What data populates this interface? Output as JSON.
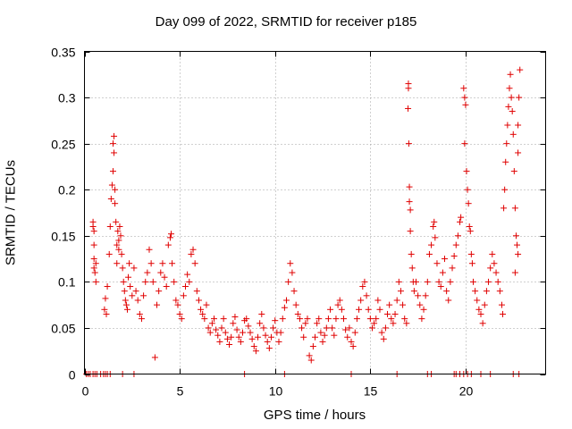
{
  "chart_data": {
    "type": "scatter",
    "title": "Day 099 of 2022, SRMTID for receiver p185",
    "xlabel": "GPS time / hours",
    "ylabel": "SRMTID / TECUs",
    "xlim": [
      0,
      24.2
    ],
    "ylim": [
      0,
      0.35
    ],
    "xticks": [
      0,
      5,
      10,
      15,
      20
    ],
    "xtick_labels": [
      "0",
      "5",
      "10",
      "15",
      "20"
    ],
    "yticks": [
      0,
      0.05,
      0.1,
      0.15,
      0.2,
      0.25,
      0.3,
      0.35
    ],
    "ytick_labels": [
      "0",
      "0.05",
      "0.1",
      "0.15",
      "0.2",
      "0.25",
      "0.3",
      "0.35"
    ],
    "grid": true,
    "marker": "+",
    "color": "#e00000",
    "series": [
      {
        "name": "SRMTID",
        "points": [
          [
            0.1,
            0
          ],
          [
            0.2,
            0
          ],
          [
            0.3,
            0
          ],
          [
            0.45,
            0
          ],
          [
            0.55,
            0
          ],
          [
            0.65,
            0
          ],
          [
            0.85,
            0
          ],
          [
            1.0,
            0
          ],
          [
            1.1,
            0
          ],
          [
            1.2,
            0
          ],
          [
            1.35,
            0
          ],
          [
            2.0,
            0
          ],
          [
            2.6,
            0
          ],
          [
            8.4,
            0
          ],
          [
            10.5,
            0
          ],
          [
            14.0,
            0
          ],
          [
            16.4,
            0
          ],
          [
            18.0,
            0
          ],
          [
            18.2,
            0
          ],
          [
            19.4,
            0
          ],
          [
            19.5,
            0
          ],
          [
            19.7,
            0
          ],
          [
            19.9,
            0
          ],
          [
            20.1,
            0
          ],
          [
            20.3,
            0
          ],
          [
            20.8,
            0
          ],
          [
            21.3,
            0
          ],
          [
            22.5,
            0
          ],
          [
            22.8,
            0
          ],
          [
            0.45,
            0.165
          ],
          [
            0.45,
            0.16
          ],
          [
            0.5,
            0.155
          ],
          [
            0.5,
            0.14
          ],
          [
            0.5,
            0.125
          ],
          [
            0.5,
            0.115
          ],
          [
            0.55,
            0.11
          ],
          [
            0.6,
            0.12
          ],
          [
            0.6,
            0.1
          ],
          [
            1.05,
            0.07
          ],
          [
            1.1,
            0.082
          ],
          [
            1.15,
            0.065
          ],
          [
            1.2,
            0.095
          ],
          [
            1.3,
            0.13
          ],
          [
            1.35,
            0.16
          ],
          [
            1.4,
            0.19
          ],
          [
            1.45,
            0.205
          ],
          [
            1.5,
            0.22
          ],
          [
            1.5,
            0.25
          ],
          [
            1.55,
            0.258
          ],
          [
            1.55,
            0.24
          ],
          [
            1.6,
            0.2
          ],
          [
            1.6,
            0.185
          ],
          [
            1.65,
            0.165
          ],
          [
            1.7,
            0.14
          ],
          [
            1.7,
            0.12
          ],
          [
            1.75,
            0.155
          ],
          [
            1.8,
            0.145
          ],
          [
            1.8,
            0.135
          ],
          [
            1.85,
            0.16
          ],
          [
            1.9,
            0.15
          ],
          [
            1.95,
            0.13
          ],
          [
            2.0,
            0.115
          ],
          [
            2.05,
            0.1
          ],
          [
            2.1,
            0.09
          ],
          [
            2.15,
            0.08
          ],
          [
            2.2,
            0.075
          ],
          [
            2.25,
            0.07
          ],
          [
            2.3,
            0.105
          ],
          [
            2.35,
            0.12
          ],
          [
            2.4,
            0.095
          ],
          [
            2.5,
            0.085
          ],
          [
            2.6,
            0.115
          ],
          [
            2.7,
            0.09
          ],
          [
            2.8,
            0.08
          ],
          [
            2.9,
            0.065
          ],
          [
            3.0,
            0.06
          ],
          [
            3.1,
            0.085
          ],
          [
            3.2,
            0.1
          ],
          [
            3.3,
            0.11
          ],
          [
            3.4,
            0.135
          ],
          [
            3.5,
            0.12
          ],
          [
            3.6,
            0.1
          ],
          [
            3.7,
            0.018
          ],
          [
            3.8,
            0.075
          ],
          [
            3.9,
            0.09
          ],
          [
            4.0,
            0.11
          ],
          [
            4.1,
            0.12
          ],
          [
            4.2,
            0.105
          ],
          [
            4.3,
            0.095
          ],
          [
            4.4,
            0.14
          ],
          [
            4.5,
            0.148
          ],
          [
            4.55,
            0.152
          ],
          [
            4.6,
            0.12
          ],
          [
            4.7,
            0.1
          ],
          [
            4.8,
            0.08
          ],
          [
            4.9,
            0.075
          ],
          [
            5.0,
            0.065
          ],
          [
            5.1,
            0.06
          ],
          [
            5.2,
            0.085
          ],
          [
            5.3,
            0.095
          ],
          [
            5.4,
            0.108
          ],
          [
            5.5,
            0.1
          ],
          [
            5.6,
            0.13
          ],
          [
            5.7,
            0.135
          ],
          [
            5.8,
            0.12
          ],
          [
            5.9,
            0.09
          ],
          [
            6.0,
            0.08
          ],
          [
            6.1,
            0.07
          ],
          [
            6.2,
            0.065
          ],
          [
            6.3,
            0.06
          ],
          [
            6.4,
            0.075
          ],
          [
            6.5,
            0.05
          ],
          [
            6.6,
            0.045
          ],
          [
            6.7,
            0.055
          ],
          [
            6.8,
            0.06
          ],
          [
            6.9,
            0.048
          ],
          [
            7.0,
            0.042
          ],
          [
            7.1,
            0.035
          ],
          [
            7.2,
            0.05
          ],
          [
            7.3,
            0.06
          ],
          [
            7.4,
            0.045
          ],
          [
            7.5,
            0.038
          ],
          [
            7.6,
            0.032
          ],
          [
            7.7,
            0.04
          ],
          [
            7.8,
            0.055
          ],
          [
            7.9,
            0.062
          ],
          [
            8.0,
            0.048
          ],
          [
            8.1,
            0.04
          ],
          [
            8.2,
            0.035
          ],
          [
            8.3,
            0.045
          ],
          [
            8.4,
            0.058
          ],
          [
            8.5,
            0.06
          ],
          [
            8.6,
            0.052
          ],
          [
            8.7,
            0.045
          ],
          [
            8.8,
            0.038
          ],
          [
            8.9,
            0.03
          ],
          [
            9.0,
            0.025
          ],
          [
            9.1,
            0.04
          ],
          [
            9.2,
            0.055
          ],
          [
            9.3,
            0.065
          ],
          [
            9.4,
            0.05
          ],
          [
            9.5,
            0.042
          ],
          [
            9.6,
            0.035
          ],
          [
            9.7,
            0.028
          ],
          [
            9.8,
            0.04
          ],
          [
            9.9,
            0.05
          ],
          [
            10.0,
            0.058
          ],
          [
            10.1,
            0.045
          ],
          [
            10.2,
            0.035
          ],
          [
            10.3,
            0.045
          ],
          [
            10.4,
            0.06
          ],
          [
            10.5,
            0.072
          ],
          [
            10.6,
            0.08
          ],
          [
            10.7,
            0.1
          ],
          [
            10.8,
            0.12
          ],
          [
            10.9,
            0.11
          ],
          [
            11.0,
            0.09
          ],
          [
            11.1,
            0.075
          ],
          [
            11.2,
            0.065
          ],
          [
            11.3,
            0.06
          ],
          [
            11.4,
            0.05
          ],
          [
            11.5,
            0.04
          ],
          [
            11.6,
            0.055
          ],
          [
            11.7,
            0.06
          ],
          [
            11.8,
            0.02
          ],
          [
            11.9,
            0.015
          ],
          [
            12.0,
            0.03
          ],
          [
            12.1,
            0.04
          ],
          [
            12.2,
            0.055
          ],
          [
            12.3,
            0.06
          ],
          [
            12.4,
            0.045
          ],
          [
            12.5,
            0.035
          ],
          [
            12.6,
            0.042
          ],
          [
            12.7,
            0.05
          ],
          [
            12.8,
            0.06
          ],
          [
            12.9,
            0.07
          ],
          [
            13.0,
            0.05
          ],
          [
            13.1,
            0.042
          ],
          [
            13.2,
            0.06
          ],
          [
            13.3,
            0.075
          ],
          [
            13.4,
            0.08
          ],
          [
            13.5,
            0.07
          ],
          [
            13.6,
            0.06
          ],
          [
            13.7,
            0.048
          ],
          [
            13.8,
            0.04
          ],
          [
            13.9,
            0.05
          ],
          [
            14.0,
            0.035
          ],
          [
            14.1,
            0.03
          ],
          [
            14.2,
            0.045
          ],
          [
            14.3,
            0.06
          ],
          [
            14.4,
            0.07
          ],
          [
            14.5,
            0.08
          ],
          [
            14.6,
            0.095
          ],
          [
            14.7,
            0.1
          ],
          [
            14.8,
            0.085
          ],
          [
            14.9,
            0.07
          ],
          [
            15.0,
            0.06
          ],
          [
            15.1,
            0.05
          ],
          [
            15.2,
            0.055
          ],
          [
            15.3,
            0.06
          ],
          [
            15.4,
            0.08
          ],
          [
            15.5,
            0.07
          ],
          [
            15.6,
            0.045
          ],
          [
            15.7,
            0.038
          ],
          [
            15.8,
            0.05
          ],
          [
            15.9,
            0.065
          ],
          [
            16.0,
            0.075
          ],
          [
            16.1,
            0.06
          ],
          [
            16.2,
            0.055
          ],
          [
            16.3,
            0.065
          ],
          [
            16.4,
            0.08
          ],
          [
            16.5,
            0.1
          ],
          [
            16.6,
            0.09
          ],
          [
            16.7,
            0.075
          ],
          [
            16.8,
            0.06
          ],
          [
            16.9,
            0.055
          ],
          [
            17.0,
            0.315
          ],
          [
            17.0,
            0.31
          ],
          [
            16.98,
            0.288
          ],
          [
            17.02,
            0.25
          ],
          [
            17.05,
            0.203
          ],
          [
            17.05,
            0.187
          ],
          [
            17.1,
            0.178
          ],
          [
            17.1,
            0.155
          ],
          [
            17.15,
            0.13
          ],
          [
            17.2,
            0.115
          ],
          [
            17.25,
            0.1
          ],
          [
            17.3,
            0.09
          ],
          [
            17.4,
            0.1
          ],
          [
            17.5,
            0.085
          ],
          [
            17.6,
            0.075
          ],
          [
            17.7,
            0.06
          ],
          [
            17.8,
            0.07
          ],
          [
            17.9,
            0.085
          ],
          [
            18.0,
            0.1
          ],
          [
            18.1,
            0.13
          ],
          [
            18.2,
            0.14
          ],
          [
            18.3,
            0.16
          ],
          [
            18.35,
            0.165
          ],
          [
            18.4,
            0.148
          ],
          [
            18.5,
            0.12
          ],
          [
            18.6,
            0.1
          ],
          [
            18.7,
            0.095
          ],
          [
            18.8,
            0.11
          ],
          [
            18.9,
            0.125
          ],
          [
            19.0,
            0.09
          ],
          [
            19.1,
            0.08
          ],
          [
            19.2,
            0.1
          ],
          [
            19.3,
            0.115
          ],
          [
            19.4,
            0.128
          ],
          [
            19.5,
            0.14
          ],
          [
            19.6,
            0.15
          ],
          [
            19.7,
            0.165
          ],
          [
            19.75,
            0.17
          ],
          [
            19.9,
            0.31
          ],
          [
            19.95,
            0.3
          ],
          [
            20.0,
            0.292
          ],
          [
            19.95,
            0.25
          ],
          [
            20.05,
            0.22
          ],
          [
            20.1,
            0.2
          ],
          [
            20.15,
            0.185
          ],
          [
            20.2,
            0.16
          ],
          [
            20.25,
            0.155
          ],
          [
            20.3,
            0.13
          ],
          [
            20.35,
            0.12
          ],
          [
            20.4,
            0.1
          ],
          [
            20.5,
            0.09
          ],
          [
            20.6,
            0.08
          ],
          [
            20.7,
            0.07
          ],
          [
            20.8,
            0.065
          ],
          [
            20.9,
            0.055
          ],
          [
            21.0,
            0.075
          ],
          [
            21.1,
            0.09
          ],
          [
            21.2,
            0.1
          ],
          [
            21.3,
            0.115
          ],
          [
            21.4,
            0.13
          ],
          [
            21.5,
            0.12
          ],
          [
            21.6,
            0.11
          ],
          [
            21.7,
            0.1
          ],
          [
            21.8,
            0.09
          ],
          [
            21.9,
            0.075
          ],
          [
            21.95,
            0.065
          ],
          [
            22.0,
            0.18
          ],
          [
            22.05,
            0.2
          ],
          [
            22.1,
            0.23
          ],
          [
            22.15,
            0.25
          ],
          [
            22.2,
            0.27
          ],
          [
            22.25,
            0.29
          ],
          [
            22.3,
            0.31
          ],
          [
            22.35,
            0.325
          ],
          [
            22.4,
            0.3
          ],
          [
            22.45,
            0.285
          ],
          [
            22.5,
            0.26
          ],
          [
            22.55,
            0.22
          ],
          [
            22.6,
            0.18
          ],
          [
            22.65,
            0.15
          ],
          [
            22.7,
            0.14
          ],
          [
            22.75,
            0.13
          ],
          [
            22.85,
            0.33
          ],
          [
            22.8,
            0.3
          ],
          [
            22.75,
            0.27
          ],
          [
            22.75,
            0.24
          ],
          [
            22.6,
            0.11
          ]
        ]
      }
    ]
  }
}
